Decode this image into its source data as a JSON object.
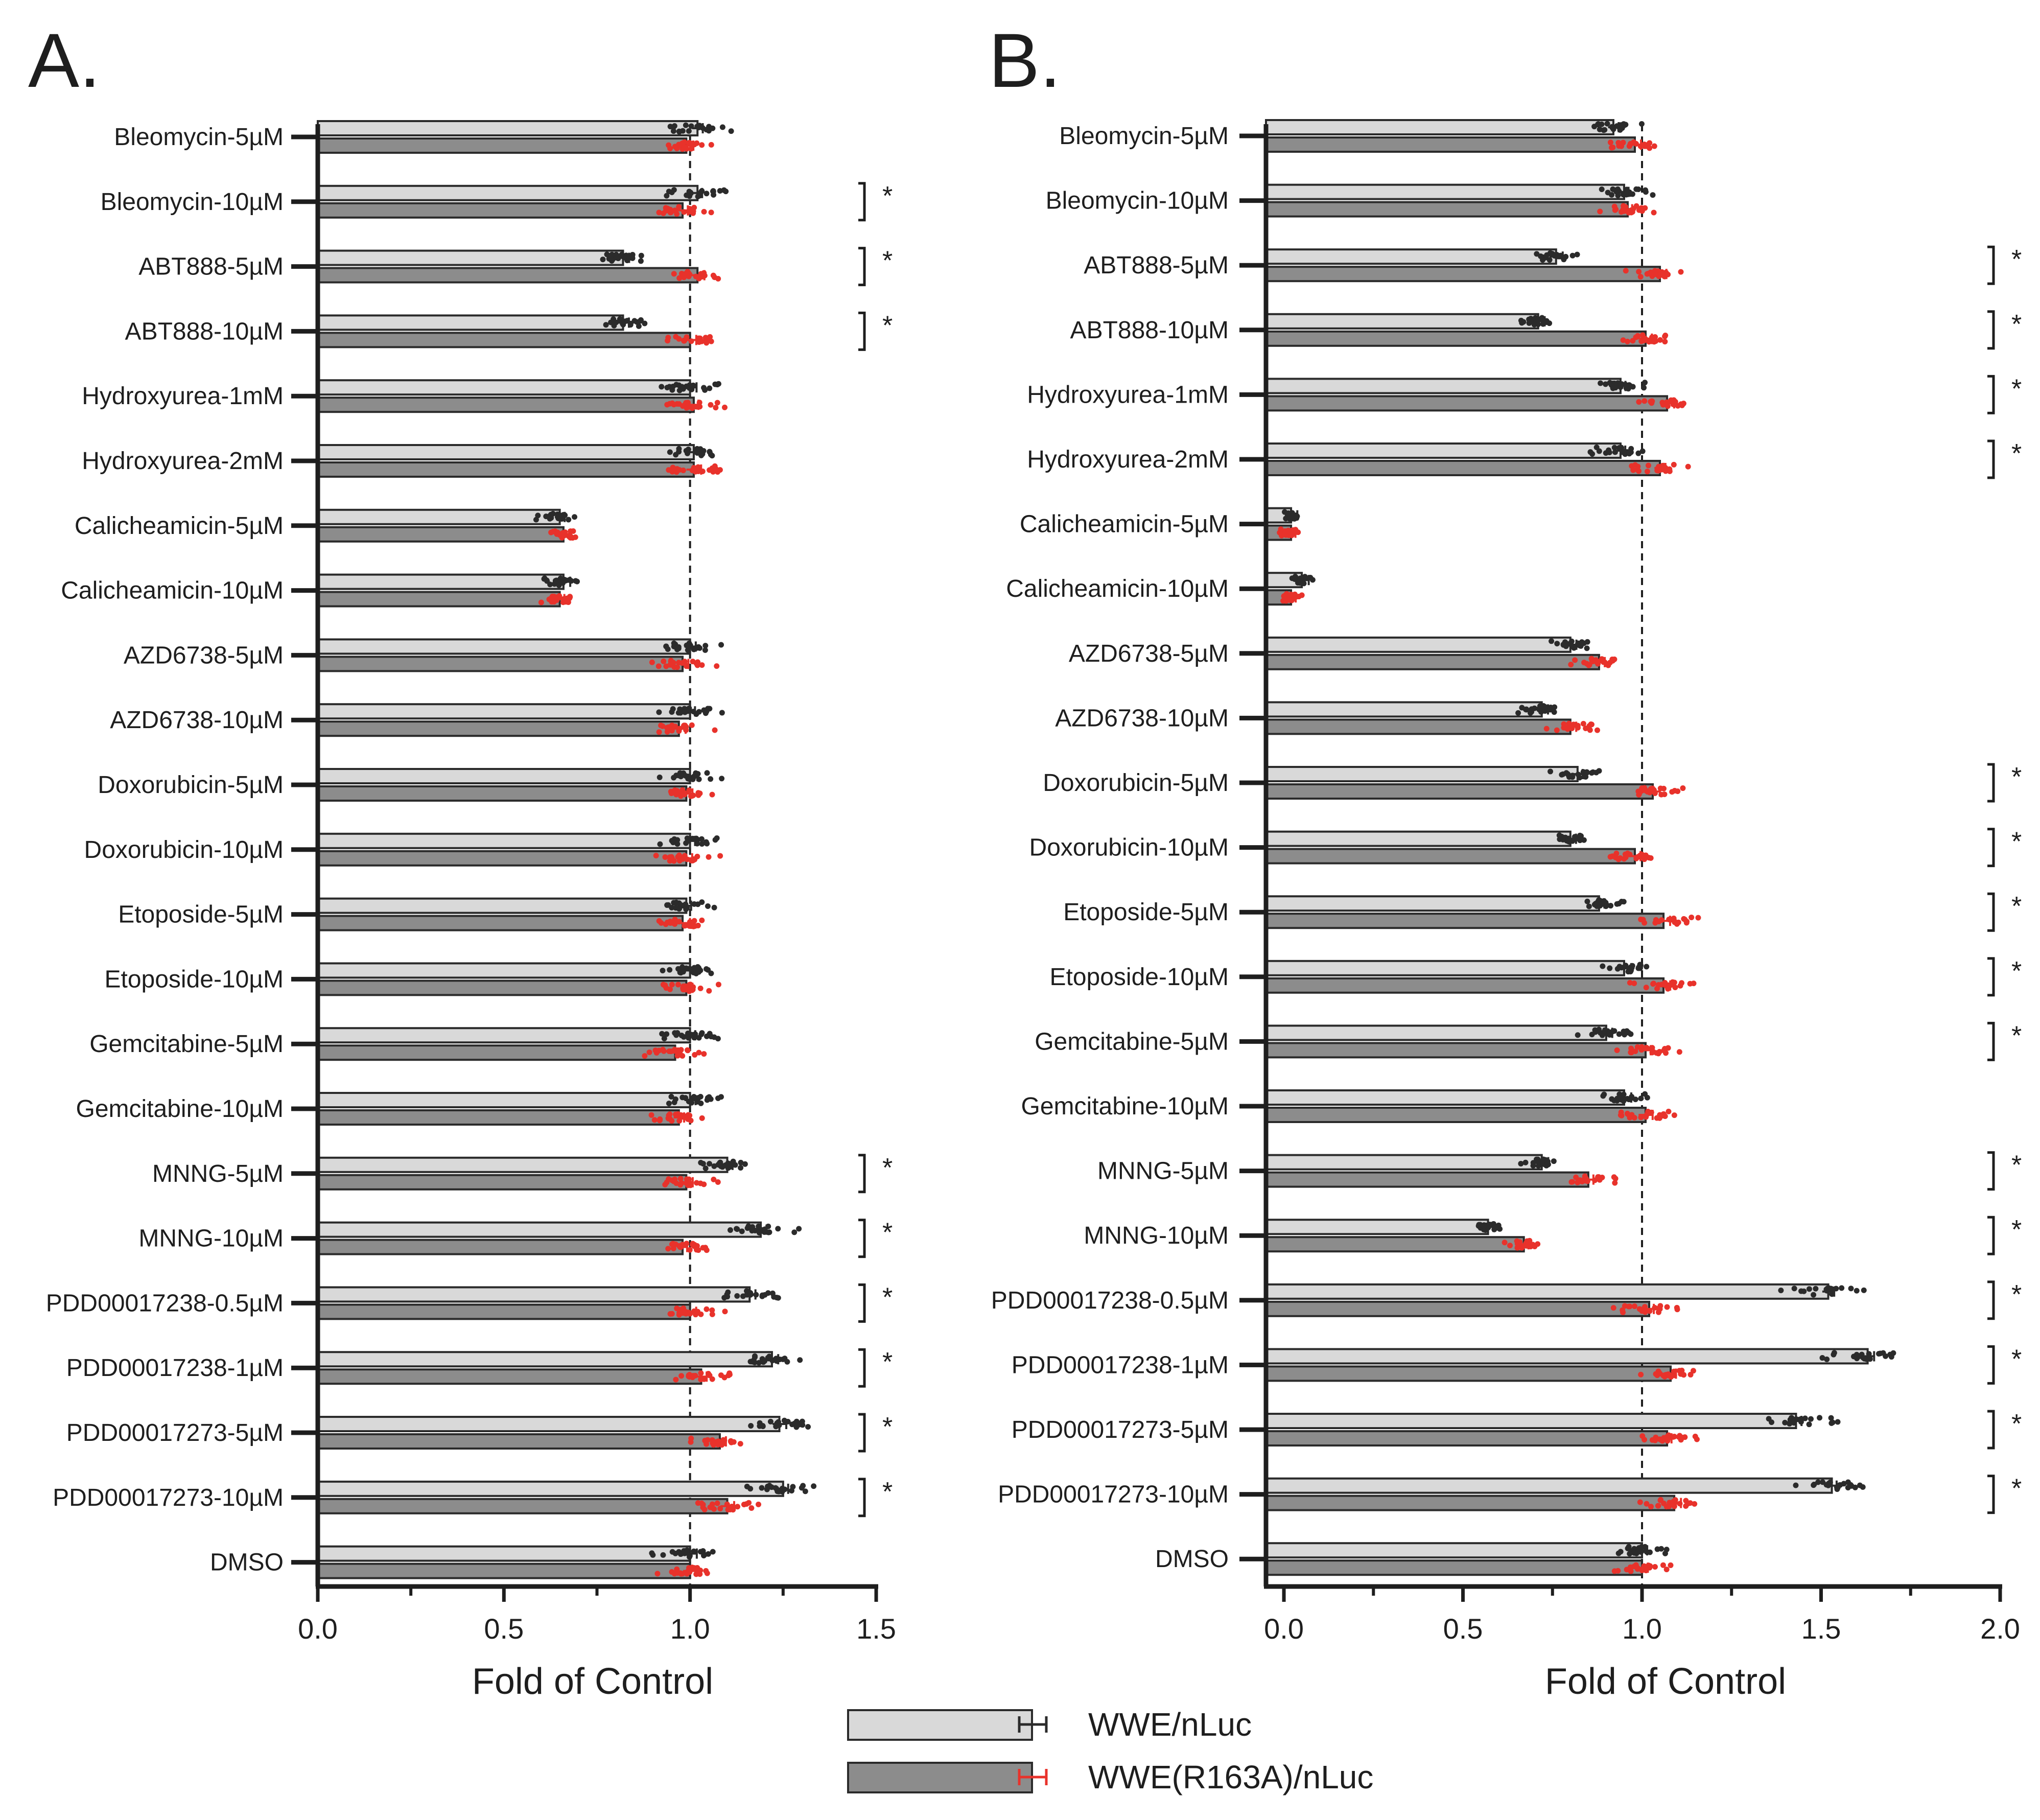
{
  "colors": {
    "series1_fill": "#d9d9d9",
    "series2_fill": "#8c8c8c",
    "bar_stroke": "#2b2b2b",
    "series1_dots": "#2b2b2b",
    "series2_dots": "#e8322b",
    "axis": "#1e1e1e"
  },
  "legend": {
    "items": [
      {
        "label": "WWE/nLuc"
      },
      {
        "label": "WWE(R163A)/nLuc"
      }
    ]
  },
  "chart_data": [
    {
      "panel": "A.",
      "type": "bar",
      "orientation": "horizontal",
      "xlabel": "Fold of Control",
      "xlim": [
        0,
        1.5
      ],
      "xticks": [
        "0.0",
        "0.5",
        "1.0",
        "1.5"
      ],
      "reference_line": 1.0,
      "categories": [
        "Bleomycin-5µM",
        "Bleomycin-10µM",
        "ABT888-5µM",
        "ABT888-10µM",
        "Hydroxyurea-1mM",
        "Hydroxyurea-2mM",
        "Calicheamicin-5µM",
        "Calicheamicin-10µM",
        "AZD6738-5µM",
        "AZD6738-10µM",
        "Doxorubicin-5µM",
        "Doxorubicin-10µM",
        "Etoposide-5µM",
        "Etoposide-10µM",
        "Gemcitabine-5µM",
        "Gemcitabine-10µM",
        "MNNG-5µM",
        "MNNG-10µM",
        "PDD00017238-0.5µM",
        "PDD00017238-1µM",
        "PDD00017273-5µM",
        "PDD00017273-10µM",
        "DMSO"
      ],
      "series": [
        {
          "name": "WWE/nLuc",
          "values": [
            1.02,
            1.02,
            0.82,
            0.82,
            1.0,
            1.01,
            0.65,
            0.66,
            1.0,
            1.0,
            1.0,
            1.0,
            0.99,
            1.0,
            1.0,
            1.0,
            1.1,
            1.19,
            1.16,
            1.22,
            1.24,
            1.25,
            1.0
          ]
        },
        {
          "name": "WWE(R163A)/nLuc",
          "values": [
            0.99,
            0.98,
            1.02,
            1.0,
            1.01,
            1.01,
            0.66,
            0.65,
            0.98,
            0.97,
            0.99,
            0.99,
            0.98,
            0.99,
            0.96,
            0.97,
            0.99,
            0.98,
            1.0,
            1.03,
            1.08,
            1.1,
            1.0
          ]
        }
      ],
      "significant": [
        false,
        true,
        true,
        true,
        false,
        false,
        false,
        false,
        false,
        false,
        false,
        false,
        false,
        false,
        false,
        false,
        true,
        true,
        true,
        true,
        true,
        true,
        false
      ],
      "significance_mark": "*"
    },
    {
      "panel": "B.",
      "type": "bar",
      "orientation": "horizontal",
      "xlabel": "Fold of Control",
      "xlim": [
        -0.05,
        2.0
      ],
      "xticks": [
        "0.0",
        "0.5",
        "1.0",
        "1.5",
        "2.0"
      ],
      "reference_line": 1.0,
      "categories": [
        "Bleomycin-5µM",
        "Bleomycin-10µM",
        "ABT888-5µM",
        "ABT888-10µM",
        "Hydroxyurea-1mM",
        "Hydroxyurea-2mM",
        "Calicheamicin-5µM",
        "Calicheamicin-10µM",
        "AZD6738-5µM",
        "AZD6738-10µM",
        "Doxorubicin-5µM",
        "Doxorubicin-10µM",
        "Etoposide-5µM",
        "Etoposide-10µM",
        "Gemcitabine-5µM",
        "Gemcitabine-10µM",
        "MNNG-5µM",
        "MNNG-10µM",
        "PDD00017238-0.5µM",
        "PDD00017238-1µM",
        "PDD00017273-5µM",
        "PDD00017273-10µM",
        "DMSO"
      ],
      "series": [
        {
          "name": "WWE/nLuc",
          "values": [
            0.92,
            0.95,
            0.76,
            0.71,
            0.94,
            0.94,
            0.02,
            0.05,
            0.8,
            0.72,
            0.82,
            0.8,
            0.88,
            0.95,
            0.9,
            0.95,
            0.72,
            0.57,
            1.52,
            1.63,
            1.43,
            1.53,
            1.0
          ]
        },
        {
          "name": "WWE(R163A)/nLuc",
          "values": [
            0.98,
            0.96,
            1.05,
            1.01,
            1.07,
            1.05,
            0.02,
            0.02,
            0.88,
            0.8,
            1.03,
            0.98,
            1.06,
            1.06,
            1.01,
            1.01,
            0.85,
            0.67,
            1.02,
            1.08,
            1.07,
            1.09,
            1.0
          ]
        }
      ],
      "significant": [
        false,
        false,
        true,
        true,
        true,
        true,
        false,
        false,
        false,
        false,
        true,
        true,
        true,
        true,
        true,
        false,
        true,
        true,
        true,
        true,
        true,
        true,
        false
      ],
      "significance_mark": "*"
    }
  ]
}
